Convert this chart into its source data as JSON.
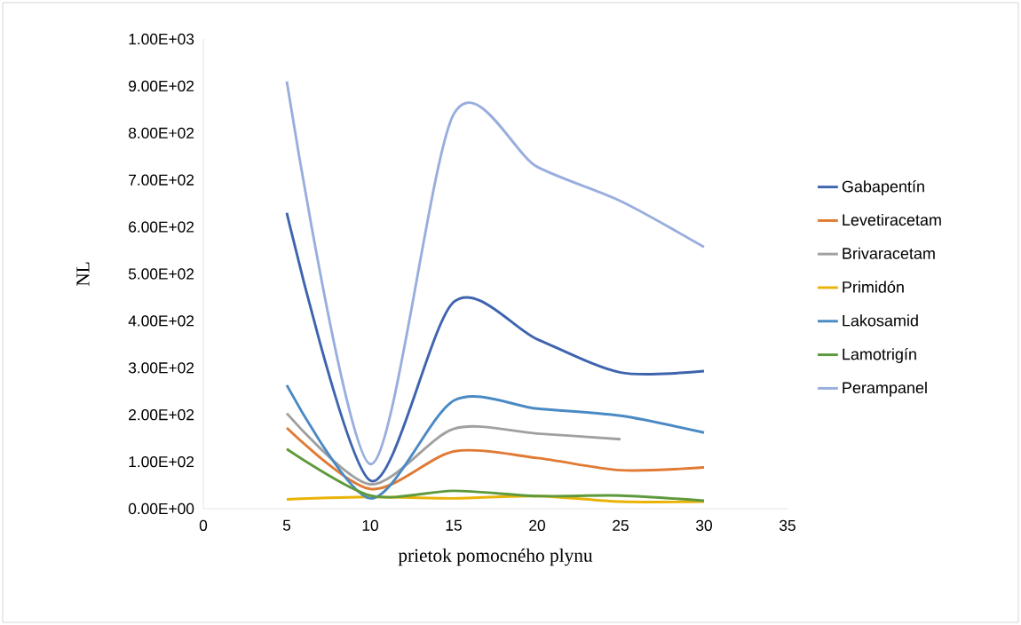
{
  "chart_data": {
    "type": "line",
    "xlabel": "prietok pomocného plynu",
    "ylabel": "NL",
    "x": [
      5,
      10,
      15,
      20,
      25,
      30
    ],
    "series": [
      {
        "name": "Gabapentín",
        "color": "#3f64ae",
        "values": [
          630,
          60,
          440,
          361,
          290,
          293
        ]
      },
      {
        "name": "Levetiracetam",
        "color": "#e07a34",
        "values": [
          172,
          42,
          122,
          108,
          82,
          88
        ]
      },
      {
        "name": "Brivaracetam",
        "color": "#a0a0a0",
        "values": [
          203,
          52,
          170,
          160,
          148,
          null
        ]
      },
      {
        "name": "Primidón",
        "color": "#eab308",
        "values": [
          20,
          25,
          22,
          27,
          15,
          15
        ]
      },
      {
        "name": "Lakosamid",
        "color": "#4a8ac4",
        "values": [
          263,
          22,
          230,
          213,
          198,
          162
        ]
      },
      {
        "name": "Lamotrigín",
        "color": "#5e9a3c",
        "values": [
          127,
          28,
          38,
          27,
          28,
          17
        ]
      },
      {
        "name": "Perampanel",
        "color": "#9aaede",
        "values": [
          910,
          95,
          840,
          728,
          655,
          557
        ]
      }
    ],
    "xlim": [
      0,
      35
    ],
    "xticks": [
      0,
      5,
      10,
      15,
      20,
      25,
      30,
      35
    ],
    "ylim": [
      0,
      1000
    ],
    "yticks": [
      {
        "value": 0,
        "label": "0.00E+00"
      },
      {
        "value": 100,
        "label": "1.00E+02"
      },
      {
        "value": 200,
        "label": "2.00E+02"
      },
      {
        "value": 300,
        "label": "3.00E+02"
      },
      {
        "value": 400,
        "label": "4.00E+02"
      },
      {
        "value": 500,
        "label": "5.00E+02"
      },
      {
        "value": 600,
        "label": "6.00E+02"
      },
      {
        "value": 700,
        "label": "7.00E+02"
      },
      {
        "value": 800,
        "label": "8.00E+02"
      },
      {
        "value": 900,
        "label": "9.00E+02"
      },
      {
        "value": 1000,
        "label": "1.00E+03"
      }
    ],
    "legend": "right",
    "marker": "none",
    "line_style": "solid",
    "grid": false
  }
}
